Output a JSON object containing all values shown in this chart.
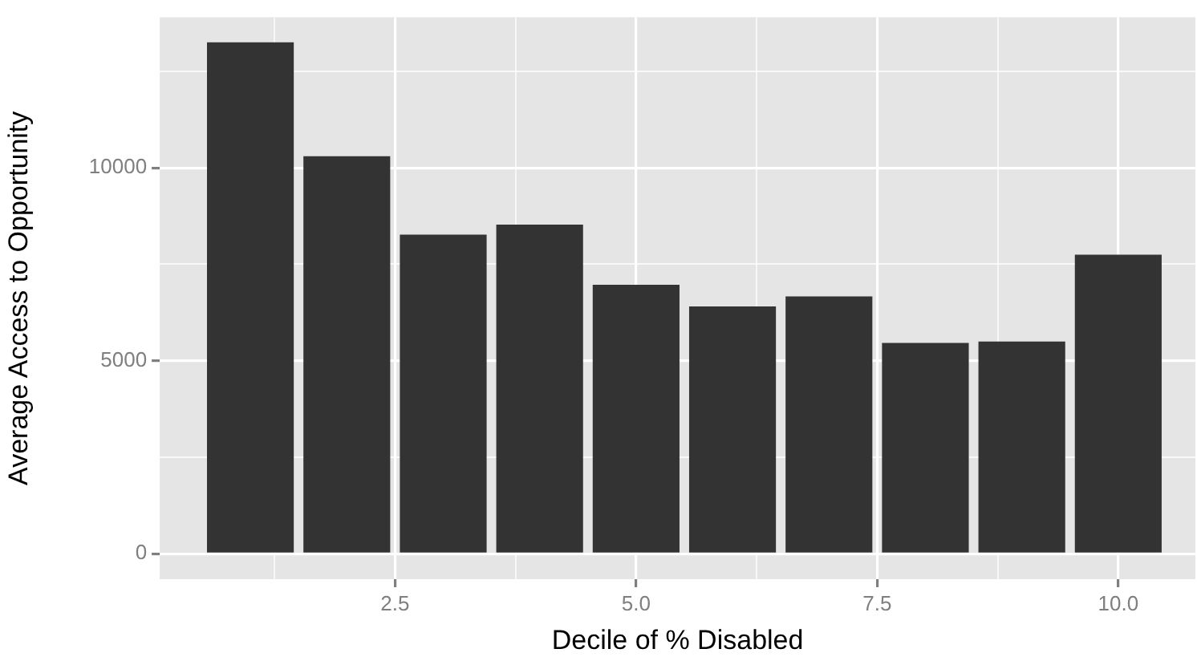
{
  "chart_data": {
    "type": "bar",
    "xlabel": "Decile of % Disabled",
    "ylabel": "Average Access to Opportunity",
    "x": [
      1,
      2,
      3,
      4,
      5,
      6,
      7,
      8,
      9,
      10
    ],
    "values": [
      13250,
      10300,
      8270,
      8530,
      6970,
      6410,
      6670,
      5460,
      5500,
      7750
    ],
    "color": "#333333",
    "xlim": [
      0.06,
      10.8
    ],
    "xticks": [
      {
        "value": 1.25,
        "label": null
      },
      {
        "value": 2.5,
        "label": "2.5"
      },
      {
        "value": 3.75,
        "label": null
      },
      {
        "value": 5,
        "label": "5.0"
      },
      {
        "value": 6.25,
        "label": null
      },
      {
        "value": 7.5,
        "label": "7.5"
      },
      {
        "value": 8.75,
        "label": null
      },
      {
        "value": 10,
        "label": "10.0"
      }
    ],
    "ylim": [
      -660,
      13900
    ],
    "yticks": [
      0,
      {
        "value": 2500,
        "label": null
      },
      5000,
      {
        "value": 7500,
        "label": null
      },
      10000,
      {
        "value": 12500,
        "label": null
      }
    ],
    "grid": true
  }
}
